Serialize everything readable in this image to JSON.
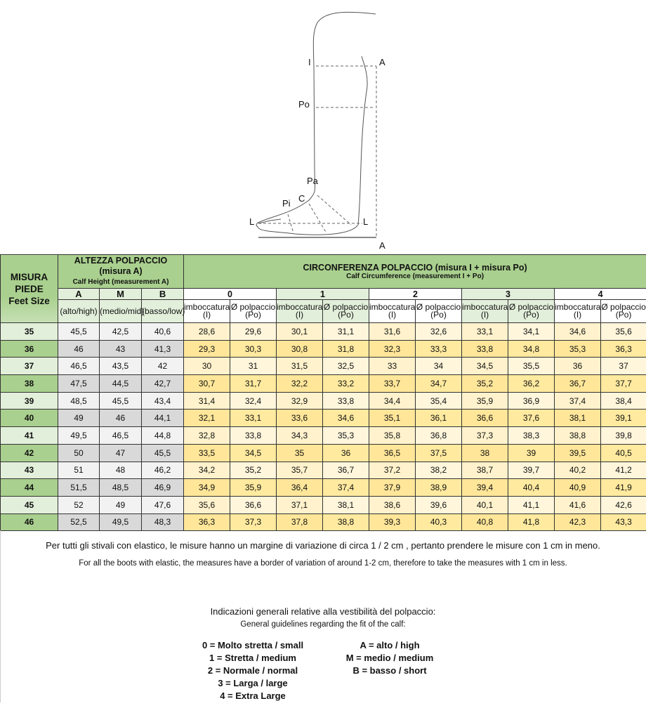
{
  "diagram": {
    "labels": {
      "I": "I",
      "A_top": "A",
      "Po": "Po",
      "Pa": "Pa",
      "C": "C",
      "Pi": "Pi",
      "L_left": "L",
      "L_right": "L",
      "A_bottom": "A"
    }
  },
  "table": {
    "size_header": [
      "MISURA",
      "PIEDE",
      "Feet Size"
    ],
    "height_header": {
      "title": "ALTEZZA POLPACCIO",
      "subtitle": "(misura A)",
      "en": "Calf Height (measurement A)"
    },
    "height_cols": [
      {
        "label": "A",
        "sub": "(alto/high)"
      },
      {
        "label": "M",
        "sub": "(medio/mid)"
      },
      {
        "label": "B",
        "sub": "(basso/low)"
      }
    ],
    "circ_header": {
      "title": "CIRCONFERENZA POLPACCIO  (misura I + misura Po)",
      "en": "Calf Circumference (measurement I + Po)"
    },
    "circ_groups": [
      "0",
      "1",
      "2",
      "3",
      "4"
    ],
    "circ_sub": [
      "imboccatura (I)",
      "Ø polpaccio (Po)"
    ],
    "rows": [
      [
        "35",
        "45,5",
        "42,5",
        "40,6",
        "28,6",
        "29,6",
        "30,1",
        "31,1",
        "31,6",
        "32,6",
        "33,1",
        "34,1",
        "34,6",
        "35,6"
      ],
      [
        "36",
        "46",
        "43",
        "41,3",
        "29,3",
        "30,3",
        "30,8",
        "31,8",
        "32,3",
        "33,3",
        "33,8",
        "34,8",
        "35,3",
        "36,3"
      ],
      [
        "37",
        "46,5",
        "43,5",
        "42",
        "30",
        "31",
        "31,5",
        "32,5",
        "33",
        "34",
        "34,5",
        "35,5",
        "36",
        "37"
      ],
      [
        "38",
        "47,5",
        "44,5",
        "42,7",
        "30,7",
        "31,7",
        "32,2",
        "33,2",
        "33,7",
        "34,7",
        "35,2",
        "36,2",
        "36,7",
        "37,7"
      ],
      [
        "39",
        "48,5",
        "45,5",
        "43,4",
        "31,4",
        "32,4",
        "32,9",
        "33,8",
        "34,4",
        "35,4",
        "35,9",
        "36,9",
        "37,4",
        "38,4"
      ],
      [
        "40",
        "49",
        "46",
        "44,1",
        "32,1",
        "33,1",
        "33,6",
        "34,6",
        "35,1",
        "36,1",
        "36,6",
        "37,6",
        "38,1",
        "39,1"
      ],
      [
        "41",
        "49,5",
        "46,5",
        "44,8",
        "32,8",
        "33,8",
        "34,3",
        "35,3",
        "35,8",
        "36,8",
        "37,3",
        "38,3",
        "38,8",
        "39,8"
      ],
      [
        "42",
        "50",
        "47",
        "45,5",
        "33,5",
        "34,5",
        "35",
        "36",
        "36,5",
        "37,5",
        "38",
        "39",
        "39,5",
        "40,5"
      ],
      [
        "43",
        "51",
        "48",
        "46,2",
        "34,2",
        "35,2",
        "35,7",
        "36,7",
        "37,2",
        "38,2",
        "38,7",
        "39,7",
        "40,2",
        "41,2"
      ],
      [
        "44",
        "51,5",
        "48,5",
        "46,9",
        "34,9",
        "35,9",
        "36,4",
        "37,4",
        "37,9",
        "38,9",
        "39,4",
        "40,4",
        "40,9",
        "41,9"
      ],
      [
        "45",
        "52",
        "49",
        "47,6",
        "35,6",
        "36,6",
        "37,1",
        "38,1",
        "38,6",
        "39,6",
        "40,1",
        "41,1",
        "41,6",
        "42,6"
      ],
      [
        "46",
        "52,5",
        "49,5",
        "48,3",
        "36,3",
        "37,3",
        "37,8",
        "38,8",
        "39,3",
        "40,3",
        "40,8",
        "41,8",
        "42,3",
        "43,3"
      ]
    ]
  },
  "notes": {
    "it": "Per tutti gli stivali con elastico, le misure hanno un margine di variazione di circa 1 / 2 cm , pertanto prendere le misure con 1 cm in meno.",
    "en": "For all the boots with elastic, the measures have a border of variation of around 1-2 cm, therefore to take the measures with 1 cm in less."
  },
  "guide": {
    "title_it": "Indicazioni generali relative alla vestibilità del polpaccio:",
    "title_en": "General guidelines regarding the fit of the calf:",
    "fit": [
      "0 = Molto stretta / small",
      "1 = Stretta / medium",
      "2 = Normale / normal",
      "3 = Larga / large",
      "4 = Extra Large"
    ],
    "height": [
      "A = alto / high",
      "M = medio / medium",
      "B = basso / short"
    ]
  }
}
